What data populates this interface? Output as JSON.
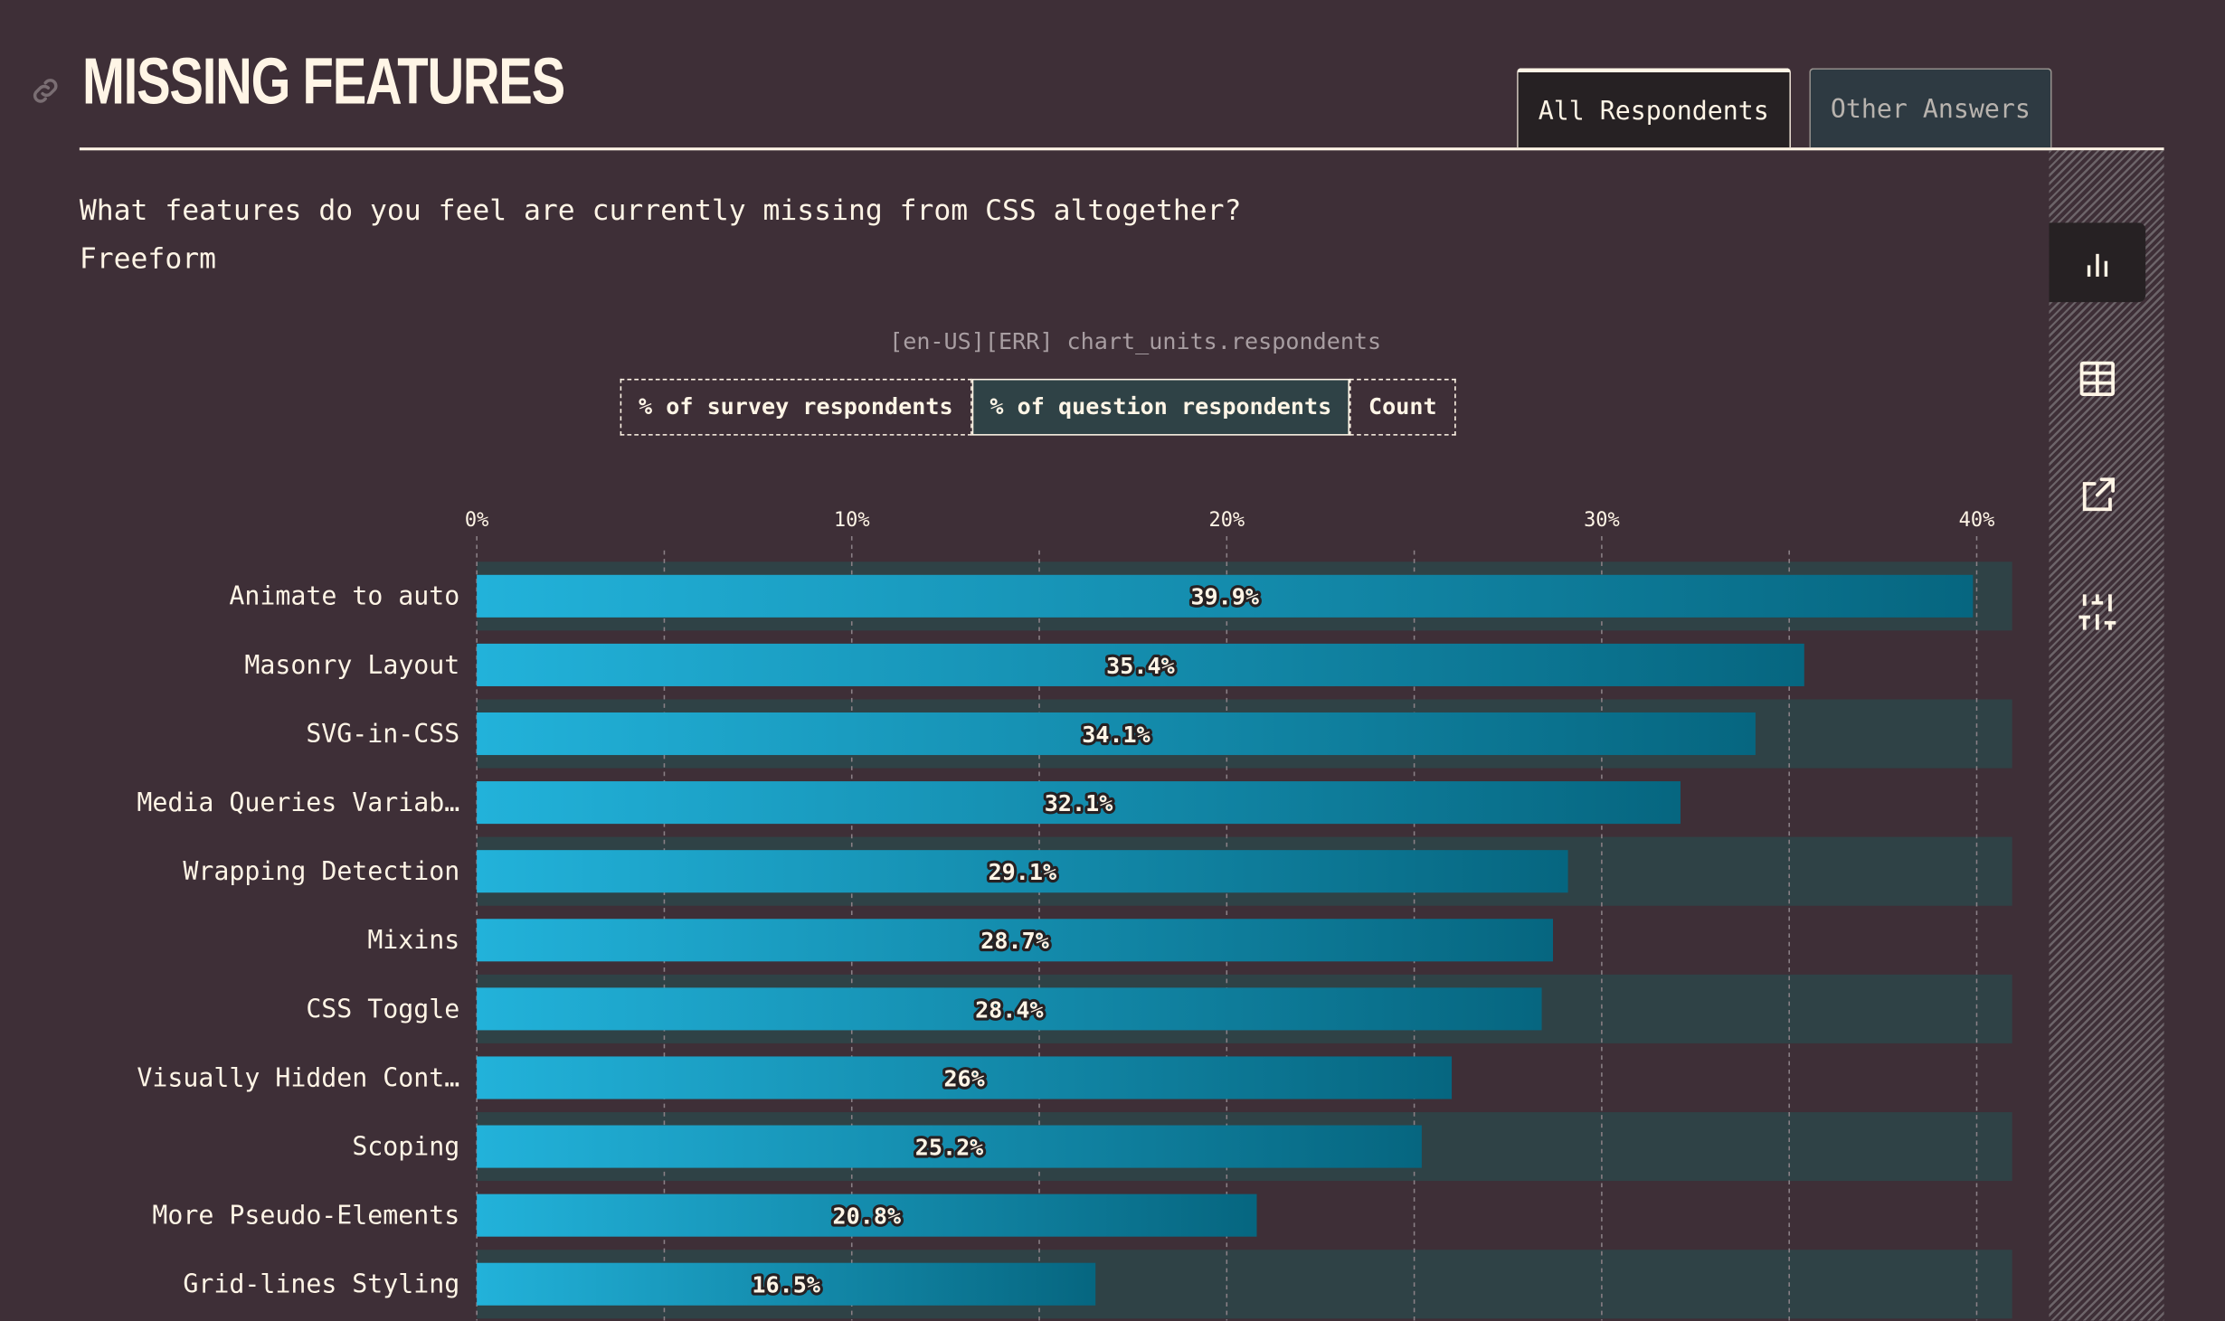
{
  "header": {
    "title": "MISSING FEATURES",
    "tabs": [
      {
        "label": "All Respondents",
        "active": true
      },
      {
        "label": "Other Answers",
        "active": false
      }
    ]
  },
  "question": "What features do you feel are currently missing from CSS altogether?",
  "question_type": "Freeform",
  "units_label": "[en-US][ERR] chart_units.respondents",
  "unit_toggle": [
    {
      "label": "% of survey respondents",
      "active": false
    },
    {
      "label": "% of question respondents",
      "active": true
    },
    {
      "label": "Count",
      "active": false
    }
  ],
  "sidebar": {
    "icons": [
      "bar-chart-icon",
      "table-icon",
      "share-icon",
      "sliders-icon"
    ],
    "active": "bar-chart-icon"
  },
  "colors": {
    "background": "#3e2f37",
    "text": "#fff5e6",
    "bar_start": "#22b2da",
    "bar_end": "#066680",
    "track": "#2f4246"
  },
  "chart_data": {
    "type": "bar",
    "orientation": "horizontal",
    "categories": [
      "Animate to auto",
      "Masonry Layout",
      "SVG-in-CSS",
      "Media Queries Variab…",
      "Wrapping Detection",
      "Mixins",
      "CSS Toggle",
      "Visually Hidden Cont…",
      "Scoping",
      "More Pseudo-Elements",
      "Grid-lines Styling"
    ],
    "values": [
      39.9,
      35.4,
      34.1,
      32.1,
      29.1,
      28.7,
      28.4,
      26,
      25.2,
      20.8,
      16.5
    ],
    "value_labels": [
      "39.9%",
      "35.4%",
      "34.1%",
      "32.1%",
      "29.1%",
      "28.7%",
      "28.4%",
      "26%",
      "25.2%",
      "20.8%",
      "16.5%"
    ],
    "x_ticks": [
      "0%",
      "10%",
      "20%",
      "30%",
      "40%"
    ],
    "xlim": [
      0,
      41
    ],
    "grid": true
  }
}
